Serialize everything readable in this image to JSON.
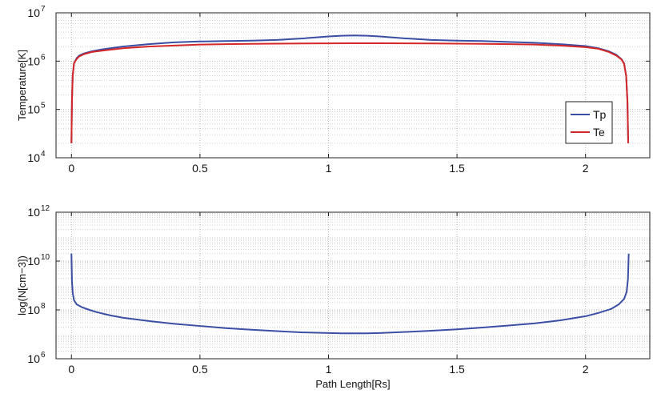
{
  "chart_data": [
    {
      "type": "line",
      "title": "",
      "xlabel": "",
      "ylabel": "Temperature[K]",
      "xlim": [
        -0.06,
        2.25
      ],
      "ylim": [
        10000,
        10000000
      ],
      "yscale": "log",
      "grid": true,
      "grid_style": "dotted",
      "legend_position": "right",
      "xticks": [
        0,
        0.5,
        1,
        1.5,
        2
      ],
      "xtick_labels": [
        "0",
        "0.5",
        "1",
        "1.5",
        "2"
      ],
      "yticks": [
        10000,
        100000,
        1000000,
        10000000
      ],
      "ytick_labels": [
        {
          "base": "10",
          "exp": "4"
        },
        {
          "base": "10",
          "exp": "5"
        },
        {
          "base": "10",
          "exp": "6"
        },
        {
          "base": "10",
          "exp": "7"
        }
      ],
      "series": [
        {
          "name": "Tp",
          "color": "#3a4fa3",
          "x": [
            0,
            0.002,
            0.005,
            0.01,
            0.02,
            0.03,
            0.05,
            0.08,
            0.12,
            0.2,
            0.3,
            0.4,
            0.5,
            0.6,
            0.7,
            0.8,
            0.9,
            1.0,
            1.05,
            1.1,
            1.15,
            1.2,
            1.3,
            1.4,
            1.5,
            1.6,
            1.7,
            1.8,
            1.9,
            2.0,
            2.05,
            2.09,
            2.12,
            2.14,
            2.15,
            2.158,
            2.163,
            2.166
          ],
          "y": [
            20000,
            150000,
            500000,
            900000,
            1150000,
            1300000,
            1450000,
            1600000,
            1750000,
            2000000,
            2250000,
            2450000,
            2550000,
            2600000,
            2650000,
            2750000,
            2950000,
            3250000,
            3350000,
            3400000,
            3350000,
            3250000,
            2950000,
            2750000,
            2650000,
            2600000,
            2500000,
            2400000,
            2250000,
            2050000,
            1850000,
            1600000,
            1350000,
            1100000,
            900000,
            500000,
            150000,
            20000
          ]
        },
        {
          "name": "Te",
          "color": "#d62728",
          "x": [
            0,
            0.002,
            0.005,
            0.01,
            0.02,
            0.03,
            0.05,
            0.08,
            0.12,
            0.2,
            0.3,
            0.4,
            0.5,
            0.6,
            0.7,
            0.8,
            0.9,
            1.0,
            1.1,
            1.2,
            1.3,
            1.4,
            1.5,
            1.6,
            1.7,
            1.8,
            1.9,
            2.0,
            2.05,
            2.09,
            2.12,
            2.14,
            2.15,
            2.158,
            2.163,
            2.166
          ],
          "y": [
            20000,
            150000,
            500000,
            900000,
            1100000,
            1250000,
            1400000,
            1550000,
            1650000,
            1850000,
            2000000,
            2100000,
            2200000,
            2250000,
            2280000,
            2300000,
            2320000,
            2330000,
            2340000,
            2340000,
            2330000,
            2320000,
            2300000,
            2280000,
            2250000,
            2200000,
            2100000,
            1950000,
            1800000,
            1550000,
            1300000,
            1080000,
            880000,
            500000,
            150000,
            20000
          ]
        }
      ]
    },
    {
      "type": "line",
      "title": "",
      "xlabel": "Path Length[Rs]",
      "ylabel": "log(N[cm−3])",
      "xlim": [
        -0.06,
        2.25
      ],
      "ylim": [
        1000000,
        1000000000000
      ],
      "yscale": "log",
      "grid": true,
      "grid_style": "dotted",
      "xticks": [
        0,
        0.5,
        1,
        1.5,
        2
      ],
      "xtick_labels": [
        "0",
        "0.5",
        "1",
        "1.5",
        "2"
      ],
      "yticks": [
        1000000,
        100000000,
        10000000000,
        1000000000000
      ],
      "ytick_labels": [
        {
          "base": "10",
          "exp": "6"
        },
        {
          "base": "10",
          "exp": "8"
        },
        {
          "base": "10",
          "exp": "10"
        },
        {
          "base": "10",
          "exp": "12"
        }
      ],
      "series": [
        {
          "color": "#3a4fa3",
          "x": [
            0,
            0.002,
            0.005,
            0.01,
            0.02,
            0.04,
            0.07,
            0.1,
            0.15,
            0.2,
            0.3,
            0.4,
            0.5,
            0.6,
            0.7,
            0.8,
            0.9,
            1.0,
            1.05,
            1.1,
            1.15,
            1.2,
            1.3,
            1.4,
            1.5,
            1.6,
            1.7,
            1.8,
            1.9,
            2.0,
            2.05,
            2.1,
            2.13,
            2.15,
            2.16,
            2.165,
            2.168
          ],
          "y": [
            20000000000,
            1500000000,
            500000000,
            250000000,
            170000000,
            130000000,
            100000000,
            80000000,
            60000000,
            48000000,
            35000000,
            27000000,
            22000000,
            18000000,
            15500000,
            13500000,
            12000000,
            11300000,
            11000000,
            11000000,
            11000000,
            11300000,
            12500000,
            14000000,
            16000000,
            19000000,
            23000000,
            28000000,
            37000000,
            55000000,
            75000000,
            110000000,
            170000000,
            280000000,
            550000000,
            1800000000,
            20000000000
          ]
        }
      ]
    }
  ]
}
